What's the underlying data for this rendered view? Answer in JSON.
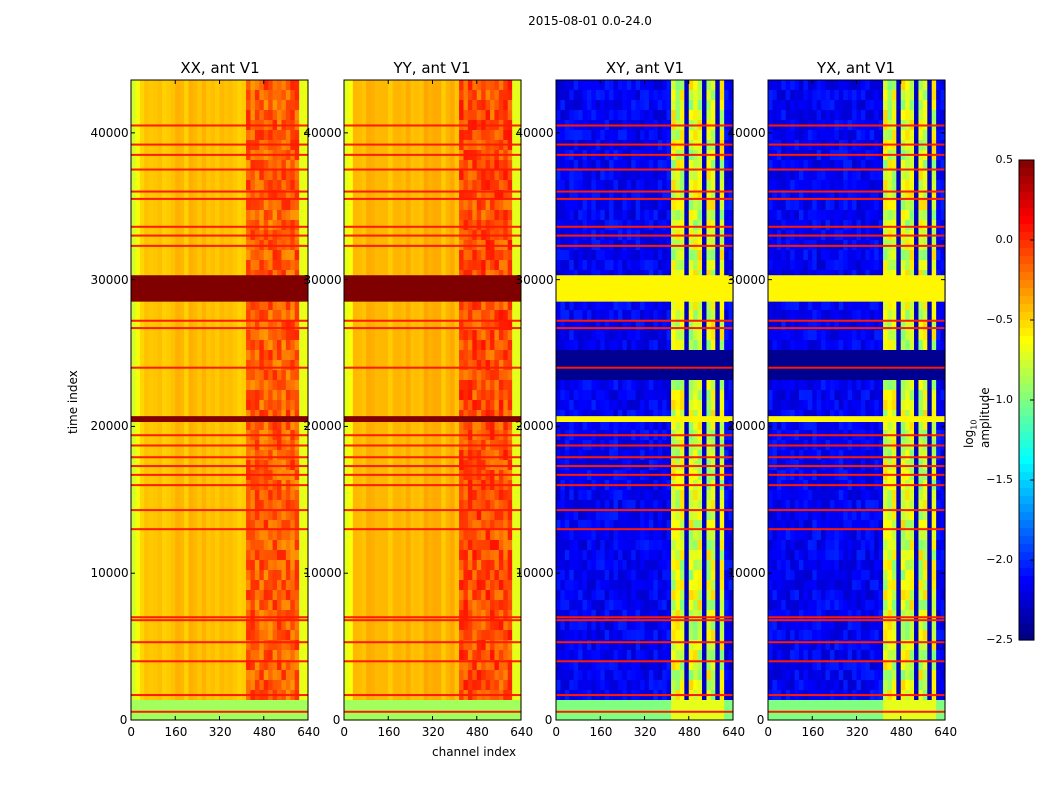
{
  "chart_data": {
    "type": "heatmap",
    "title": "2015-08-01 0.0-24.0",
    "xlabel": "channel index",
    "ylabel": "time index",
    "xlim": [
      0,
      640
    ],
    "ylim": [
      0,
      43600
    ],
    "xticks": [
      "0",
      "160",
      "320",
      "480",
      "640"
    ],
    "xtick_values": [
      0,
      160,
      320,
      480,
      640
    ],
    "yticks": [
      "0",
      "10000",
      "20000",
      "30000",
      "40000"
    ],
    "ytick_values": [
      0,
      10000,
      20000,
      30000,
      40000
    ],
    "colorbar": {
      "label_main": "log",
      "label_sub": "10",
      "label_rest": " amplitude",
      "range": [
        -2.5,
        0.5
      ],
      "ticks": [
        "0.5",
        "0.0",
        "−0.5",
        "−1.0",
        "−1.5",
        "−2.0",
        "−2.5"
      ],
      "tick_values": [
        0.5,
        0.0,
        -0.5,
        -1.0,
        -1.5,
        -2.0,
        -2.5
      ],
      "colormap": "jet"
    },
    "panels": [
      {
        "title": "XX, ant V1",
        "kind": "auto",
        "base": -0.45,
        "band_level": -0.15
      },
      {
        "title": "YY, ant V1",
        "kind": "auto",
        "base": -0.42,
        "band_level": -0.1
      },
      {
        "title": "XY, ant V1",
        "kind": "cross",
        "base": -2.15,
        "band_level": -0.75
      },
      {
        "title": "YX, ant V1",
        "kind": "cross",
        "base": -2.15,
        "band_level": -0.75
      }
    ],
    "bright_channel_band": [
      420,
      600
    ],
    "dark_channel_gaps": [
      470,
      530,
      585
    ],
    "low_rows": [
      0,
      1700
    ],
    "saturated_row_bands": [
      [
        28500,
        30300
      ],
      [
        20300,
        20700
      ]
    ],
    "dark_cross_band": [
      23500,
      25200
    ],
    "flagged_rows": [
      560,
      1700,
      4000,
      5300,
      6800,
      7000,
      13000,
      14300,
      16000,
      16700,
      17300,
      17900,
      18700,
      19400,
      24000,
      26700,
      27200,
      32300,
      33000,
      33600,
      35500,
      36000,
      37500,
      38500,
      39200,
      40500
    ]
  }
}
